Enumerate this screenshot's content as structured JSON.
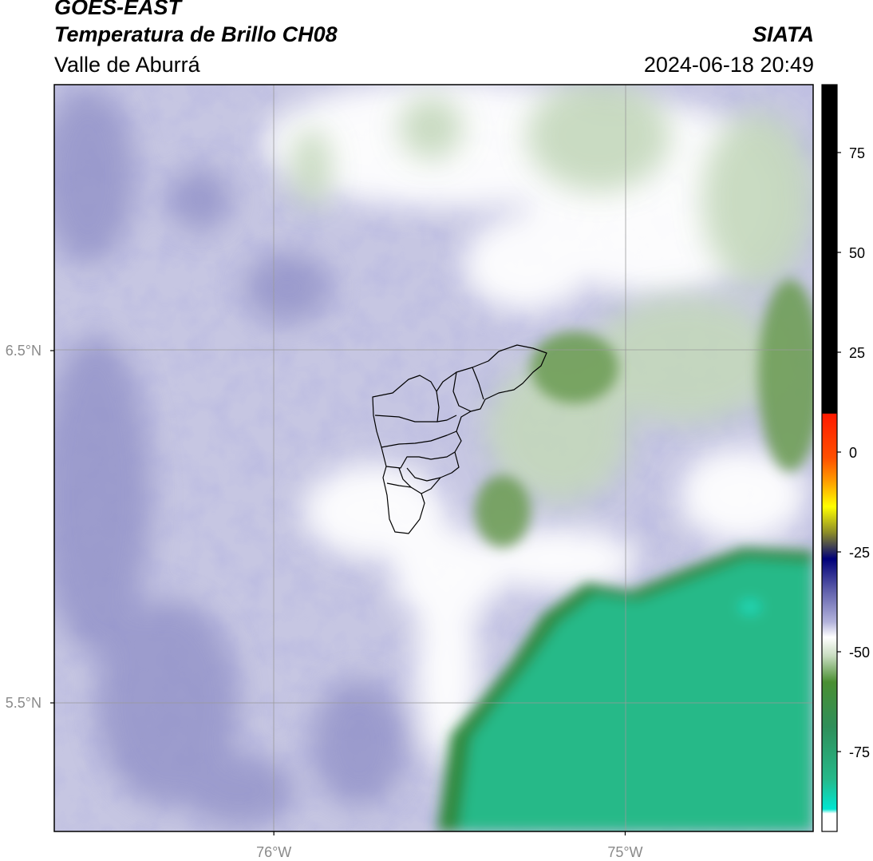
{
  "header": {
    "satellite": "GOES-EAST",
    "product": "Temperatura de Brillo CH08",
    "region": "Valle de Aburrá",
    "agency": "SIATA",
    "datetime": "2024-06-18 20:49"
  },
  "map": {
    "lat_ticks": [
      {
        "value": 6.5,
        "label": "6.5°N"
      },
      {
        "value": 5.5,
        "label": "5.5°N"
      }
    ],
    "lon_ticks": [
      {
        "value": -76,
        "label": "76°W"
      },
      {
        "value": -75,
        "label": "75°W"
      }
    ],
    "lon_range": [
      -76.625,
      -74.465
    ],
    "lat_range": [
      5.135,
      7.255
    ]
  },
  "colorbar": {
    "range": [
      -95,
      92
    ],
    "ticks": [
      {
        "value": 75,
        "label": "75"
      },
      {
        "value": 50,
        "label": "50"
      },
      {
        "value": 25,
        "label": "25"
      },
      {
        "value": 0,
        "label": "0"
      },
      {
        "value": -25,
        "label": "-25"
      },
      {
        "value": -50,
        "label": "-50"
      },
      {
        "value": -75,
        "label": "-75"
      }
    ],
    "colors": {
      "black": "#000000",
      "red": "#ff1a00",
      "orange": "#ff8c00",
      "yellow": "#ffff00",
      "olive": "#8c8c28",
      "navy": "#000078",
      "lavender": "#a0a0d2",
      "white": "#ffffff",
      "green": "#4a8f32",
      "teal": "#25b98a",
      "cyan": "#00e6d2"
    }
  }
}
